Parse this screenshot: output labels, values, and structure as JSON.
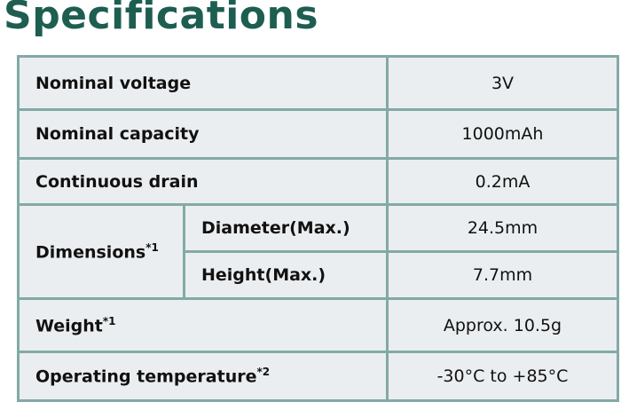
{
  "title": "Specifications",
  "rows": {
    "voltage": {
      "label": "Nominal voltage",
      "value": "3V"
    },
    "capacity": {
      "label": "Nominal capacity",
      "value": "1000mAh"
    },
    "drain": {
      "label": "Continuous drain",
      "value": "0.2mA"
    },
    "dimensions": {
      "label": "Dimensions",
      "note": "*1",
      "diameter": {
        "label": "Diameter(Max.)",
        "value": "24.5mm"
      },
      "height": {
        "label": "Height(Max.)",
        "value": "7.7mm"
      }
    },
    "weight": {
      "label": "Weight",
      "note": "*1",
      "value": "Approx. 10.5g"
    },
    "temperature": {
      "label": "Operating temperature",
      "note": "*2",
      "value": "-30°C to +85°C"
    }
  }
}
